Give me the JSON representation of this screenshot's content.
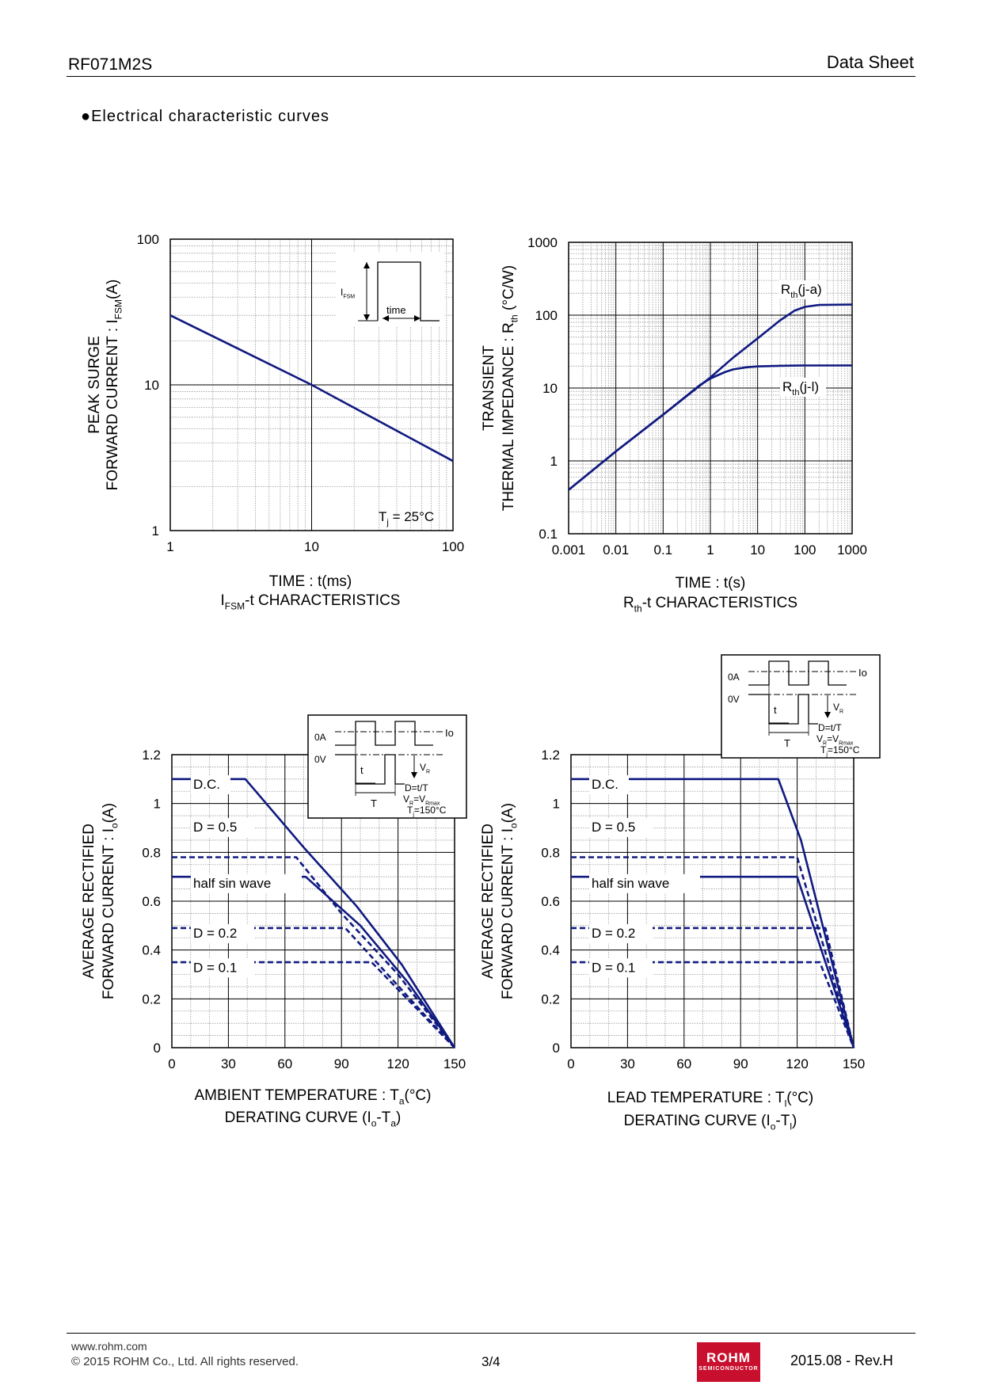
{
  "header": {
    "part_number": "RF071M2S",
    "doc_type": "Data Sheet"
  },
  "section_title": "●Electrical characteristic curves",
  "footer": {
    "url": "www.rohm.com",
    "copyright": "© 2015  ROHM Co., Ltd. All rights reserved.",
    "page": "3/4",
    "logo_text": "ROHM",
    "logo_sub": "SEMICONDUCTOR",
    "revision": "2015.08 -  Rev.H"
  },
  "colors": {
    "curve": "#101a80",
    "grid": "#000000",
    "minor_grid": "#9a9a9a"
  },
  "chart_data": [
    {
      "id": "ifsm",
      "type": "line",
      "log_x": true,
      "log_y": true,
      "xlim": [
        1,
        100
      ],
      "ylim": [
        1,
        100
      ],
      "x_ticks": [
        "1",
        "10",
        "100"
      ],
      "y_ticks": [
        "1",
        "10",
        "100"
      ],
      "xlabel": "TIME : t(ms)",
      "ylabel_line1": "PEAK SURGE",
      "ylabel_line2": "FORWARD CURRENT : I",
      "ylabel_sub": "FSM",
      "ylabel_tail": "(A)",
      "title_pre": "I",
      "title_sub": "FSM",
      "title_post": "-t CHARACTERISTICS",
      "condition_pre": "T",
      "condition_sub": "j",
      "condition_post": " = 25°C",
      "inset": {
        "label": "I",
        "label_sub": "FSM",
        "time_label": "time"
      },
      "series": [
        {
          "x": [
            1,
            10,
            100
          ],
          "y": [
            30,
            10,
            3
          ]
        }
      ]
    },
    {
      "id": "rth",
      "type": "line",
      "log_x": true,
      "log_y": true,
      "xlim": [
        0.001,
        1000
      ],
      "ylim": [
        0.1,
        1000
      ],
      "x_ticks": [
        "0.001",
        "0.01",
        "0.1",
        "1",
        "10",
        "100",
        "1000"
      ],
      "y_ticks": [
        "0.1",
        "1",
        "10",
        "100",
        "1000"
      ],
      "xlabel": "TIME : t(s)",
      "ylabel_line1": "TRANSIENT",
      "ylabel_line2": "THERMAL IMPEDANCE : R",
      "ylabel_sub": "th",
      "ylabel_tail": " (°C/W)",
      "title_pre": "R",
      "title_sub": "th",
      "title_post": "-t CHARACTERISTICS",
      "series": [
        {
          "name_pre": "R",
          "name_sub": "th",
          "name_post": "(j-a)",
          "x": [
            0.001,
            0.01,
            0.1,
            1,
            3,
            10,
            30,
            60,
            100,
            200,
            1000
          ],
          "y": [
            0.4,
            1.35,
            4.3,
            14,
            26,
            48,
            85,
            115,
            130,
            138,
            140
          ]
        },
        {
          "name_pre": "R",
          "name_sub": "th",
          "name_post": "(j-l)",
          "x": [
            0.001,
            0.01,
            0.1,
            0.6,
            1,
            2,
            3,
            6,
            10,
            30,
            100,
            1000
          ],
          "y": [
            0.4,
            1.35,
            4.3,
            11,
            13.5,
            16.5,
            18,
            19.3,
            19.8,
            20.2,
            20.4,
            20.4
          ]
        }
      ]
    },
    {
      "id": "derate_ta",
      "type": "line",
      "xlim": [
        0,
        150
      ],
      "ylim": [
        0,
        1.2
      ],
      "x_ticks": [
        "0",
        "30",
        "60",
        "90",
        "120",
        "150"
      ],
      "y_ticks": [
        "0",
        "0.2",
        "0.4",
        "0.6",
        "0.8",
        "1",
        "1.2"
      ],
      "xlabel_pre": "AMBIENT TEMPERATURE : T",
      "xlabel_sub": "a",
      "xlabel_post": "(°C)",
      "ylabel_line1": "AVERAGE RECTIFIED",
      "ylabel_line2": "FORWARD CURRENT : I",
      "ylabel_sub": "o",
      "ylabel_tail": "(A)",
      "title_pre": "DERATING CURVE (I",
      "title_sub1": "o",
      "title_mid": "-T",
      "title_sub2": "a",
      "title_post": ")",
      "series": [
        {
          "name": "D.C.",
          "dashed": false,
          "x": [
            0,
            39,
            70,
            98,
            122,
            150
          ],
          "y": [
            1.1,
            1.1,
            0.82,
            0.58,
            0.34,
            0
          ]
        },
        {
          "name": "D = 0.5",
          "dashed": true,
          "x": [
            0,
            66,
            90,
            120,
            150
          ],
          "y": [
            0.78,
            0.78,
            0.55,
            0.3,
            0
          ]
        },
        {
          "name": "half sin wave",
          "dashed": false,
          "x": [
            0,
            71,
            100,
            125,
            150
          ],
          "y": [
            0.7,
            0.7,
            0.5,
            0.27,
            0
          ]
        },
        {
          "name": "D = 0.2",
          "dashed": true,
          "x": [
            0,
            92,
            150
          ],
          "y": [
            0.49,
            0.49,
            0
          ]
        },
        {
          "name": "D = 0.1",
          "dashed": true,
          "x": [
            0,
            106,
            150
          ],
          "y": [
            0.35,
            0.35,
            0
          ]
        }
      ]
    },
    {
      "id": "derate_tl",
      "type": "line",
      "xlim": [
        0,
        150
      ],
      "ylim": [
        0,
        1.2
      ],
      "x_ticks": [
        "0",
        "30",
        "60",
        "90",
        "120",
        "150"
      ],
      "y_ticks": [
        "0",
        "0.2",
        "0.4",
        "0.6",
        "0.8",
        "1",
        "1.2"
      ],
      "xlabel_pre": "LEAD TEMPERATURE : T",
      "xlabel_sub": "l",
      "xlabel_post": "(°C)",
      "ylabel_line1": "AVERAGE RECTIFIED",
      "ylabel_line2": "FORWARD CURRENT : I",
      "ylabel_sub": "o",
      "ylabel_tail": "(A)",
      "title_pre": "DERATING CURVE (I",
      "title_sub1": "o",
      "title_mid": "-T",
      "title_sub2": "l",
      "title_post": ")",
      "series": [
        {
          "name": "D.C.",
          "dashed": false,
          "x": [
            0,
            110,
            122,
            150
          ],
          "y": [
            1.1,
            1.1,
            0.85,
            0
          ]
        },
        {
          "name": "D = 0.5",
          "dashed": true,
          "x": [
            0,
            120,
            150
          ],
          "y": [
            0.78,
            0.78,
            0
          ]
        },
        {
          "name": "half sin wave",
          "dashed": false,
          "x": [
            0,
            120,
            150
          ],
          "y": [
            0.7,
            0.7,
            0
          ]
        },
        {
          "name": "D = 0.2",
          "dashed": true,
          "x": [
            0,
            135,
            150
          ],
          "y": [
            0.49,
            0.49,
            0
          ]
        },
        {
          "name": "D = 0.1",
          "dashed": true,
          "x": [
            0,
            132,
            150
          ],
          "y": [
            0.35,
            0.35,
            0
          ]
        }
      ]
    }
  ],
  "pulse_inset": {
    "zero_amp": "0A",
    "zero_volt": "0V",
    "io": "Io",
    "vr_pre": "V",
    "vr_sub": "R",
    "t_small": "t",
    "t_big": "T",
    "duty": "D=t/T",
    "vrmax_pre": "V",
    "vrmax_sub1": "R",
    "vrmax_mid": "=V",
    "vrmax_sub2": "Rmax",
    "tj_pre": "T",
    "tj_sub": "j",
    "tj_post": "=150°C"
  }
}
